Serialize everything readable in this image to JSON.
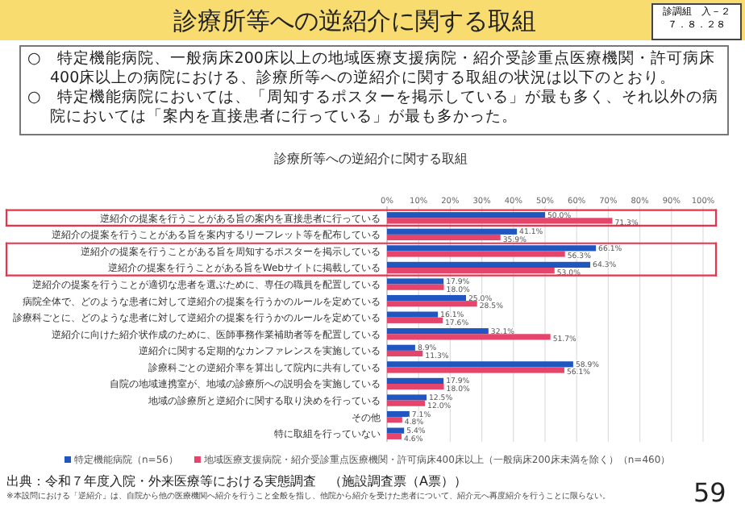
{
  "chart_data": {
    "type": "bar",
    "orientation": "horizontal",
    "title": "診療所等への逆紹介に関する取組",
    "categories": [
      "逆紹介の提案を行うことがある旨の案内を直接患者に行っている",
      "逆紹介の提案を行うことがある旨を案内するリーフレット等を配布している",
      "逆紹介の提案を行うことがある旨を周知するポスターを掲示している",
      "逆紹介の提案を行うことがある旨をWebサイトに掲載している",
      "逆紹介の提案を行うことが適切な患者を選ぶために、専任の職員を配置している",
      "病院全体で、どのような患者に対して逆紹介の提案を行うかのルールを定めている",
      "診療科ごとに、どのような患者に対して逆紹介の提案を行うかのルールを定めている",
      "逆紹介に向けた紹介状作成のために、医師事務作業補助者等を配置している",
      "逆紹介に関する定期的なカンファレンスを実施している",
      "診療科ごとの逆紹介率を算出して院内に共有している",
      "自院の地域連携室が、地域の診療所への説明会を実施している",
      "地域の診療所と逆紹介に関する取り決めを行っている",
      "その他",
      "特に取組を行っていない"
    ],
    "series": [
      {
        "name": "特定機能病院（n=56）",
        "color": "#1f56c0",
        "values": [
          50.0,
          41.1,
          66.1,
          64.3,
          17.9,
          25.0,
          16.1,
          32.1,
          8.9,
          58.9,
          17.9,
          12.5,
          7.1,
          5.4
        ],
        "value_labels": [
          "50.0%",
          "41.1%",
          "66.1%",
          "64.3%",
          "17.9%",
          "25.0%",
          "16.1%",
          "32.1%",
          "8.9%",
          "58.9%",
          "17.9%",
          "12.5%",
          "7.1%",
          "5.4%"
        ]
      },
      {
        "name": "地域医療支援病院・紹介受診重点医療機関・許可病床400床以上（一般病床200床未満を除く）（n=460）",
        "color": "#e5446b",
        "values": [
          71.3,
          35.9,
          56.3,
          53.0,
          18.0,
          28.5,
          17.6,
          51.7,
          11.3,
          56.1,
          18.0,
          12.0,
          4.8,
          4.6
        ],
        "value_labels": [
          "71.3%",
          "35.9%",
          "56.3%",
          "53.0%",
          "18.0%",
          "28.5%",
          "17.6%",
          "51.7%",
          "11.3%",
          "56.1%",
          "18.0%",
          "12.0%",
          "4.8%",
          "4.6%"
        ]
      }
    ],
    "xlim": [
      0,
      100
    ],
    "xticks": [
      {
        "value": 0,
        "label": "0%"
      },
      {
        "value": 10,
        "label": "10%"
      },
      {
        "value": 20,
        "label": "20%"
      },
      {
        "value": 30,
        "label": "30%"
      },
      {
        "value": 40,
        "label": "40%"
      },
      {
        "value": 50,
        "label": "50%"
      },
      {
        "value": 60,
        "label": "60%"
      },
      {
        "value": 70,
        "label": "70%"
      },
      {
        "value": 80,
        "label": "80%"
      },
      {
        "value": 90,
        "label": "90%"
      },
      {
        "value": 100,
        "label": "100%"
      }
    ],
    "grid": "x",
    "legend": "bottom",
    "annotations": [
      "診療所等への逆紹介に関する取組",
      "診調組　入－２",
      "７．８．２８",
      "○　特定機能病院、一般病床200床以上の地域医療支援病院・紹介受診重点医療機関・許可病床400床以上の病院における、診療所等への逆紹介に関する取組の状況は以下のとおり。",
      "○　特定機能病院においては、「周知するポスターを掲示している」が最も多く、それ以外の病院においては「案内を直接患者に行っている」が最も多かった。",
      "出典：令和７年度入院・外来医療等における実態調査　（施設調査票（A票））",
      "※本設問における「逆紹介」は、自院から他の医療機関へ紹介を行うこと全般を指し、他院から紹介を受けた患者について、紹介元へ再度紹介を行うことに限らない。",
      "59"
    ]
  }
}
